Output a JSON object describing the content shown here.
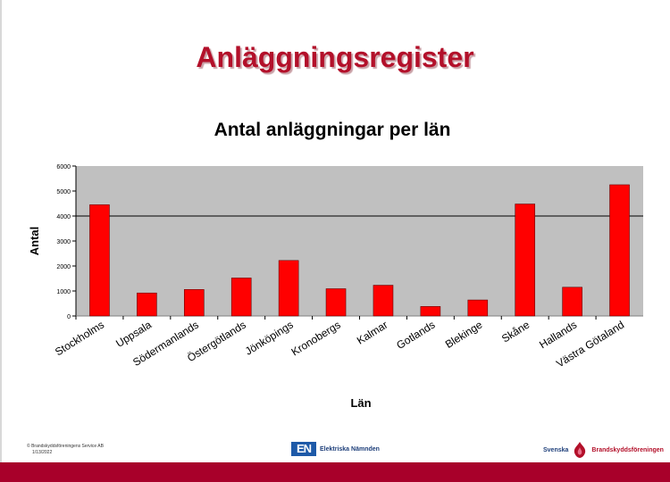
{
  "slide": {
    "title": "Anläggningsregister"
  },
  "chart_data": {
    "type": "bar",
    "title": "Antal anläggningar per län",
    "xlabel": "Län",
    "ylabel": "Antal",
    "categories": [
      "Stockholms",
      "Uppsala",
      "Södermanlands",
      "Östergötlands",
      "Jönköpings",
      "Kronobergs",
      "Kalmar",
      "Gotlands",
      "Blekinge",
      "Skåne",
      "Hallands",
      "Västra Götaland"
    ],
    "values": [
      4450,
      920,
      1060,
      1520,
      2220,
      1090,
      1230,
      380,
      640,
      4480,
      1150,
      5250
    ],
    "ylim": [
      0,
      6000
    ],
    "yticks": [
      0,
      1000,
      2000,
      3000,
      4000,
      5000,
      6000
    ],
    "reference_line": 4000,
    "grid": false,
    "legend": "none",
    "colors": {
      "bar": "#ff0000",
      "plot_background": "#c0c0c0",
      "title_accent": "#b3102a"
    }
  },
  "footer": {
    "copyright": "© Brandskyddsföreningens Service AB",
    "date": "1/13/2022",
    "en_mark": "EN",
    "en_name": "Elektriska Nämnden",
    "sbf_left": "Svenska",
    "sbf_right": "Brandskyddsföreningen"
  }
}
